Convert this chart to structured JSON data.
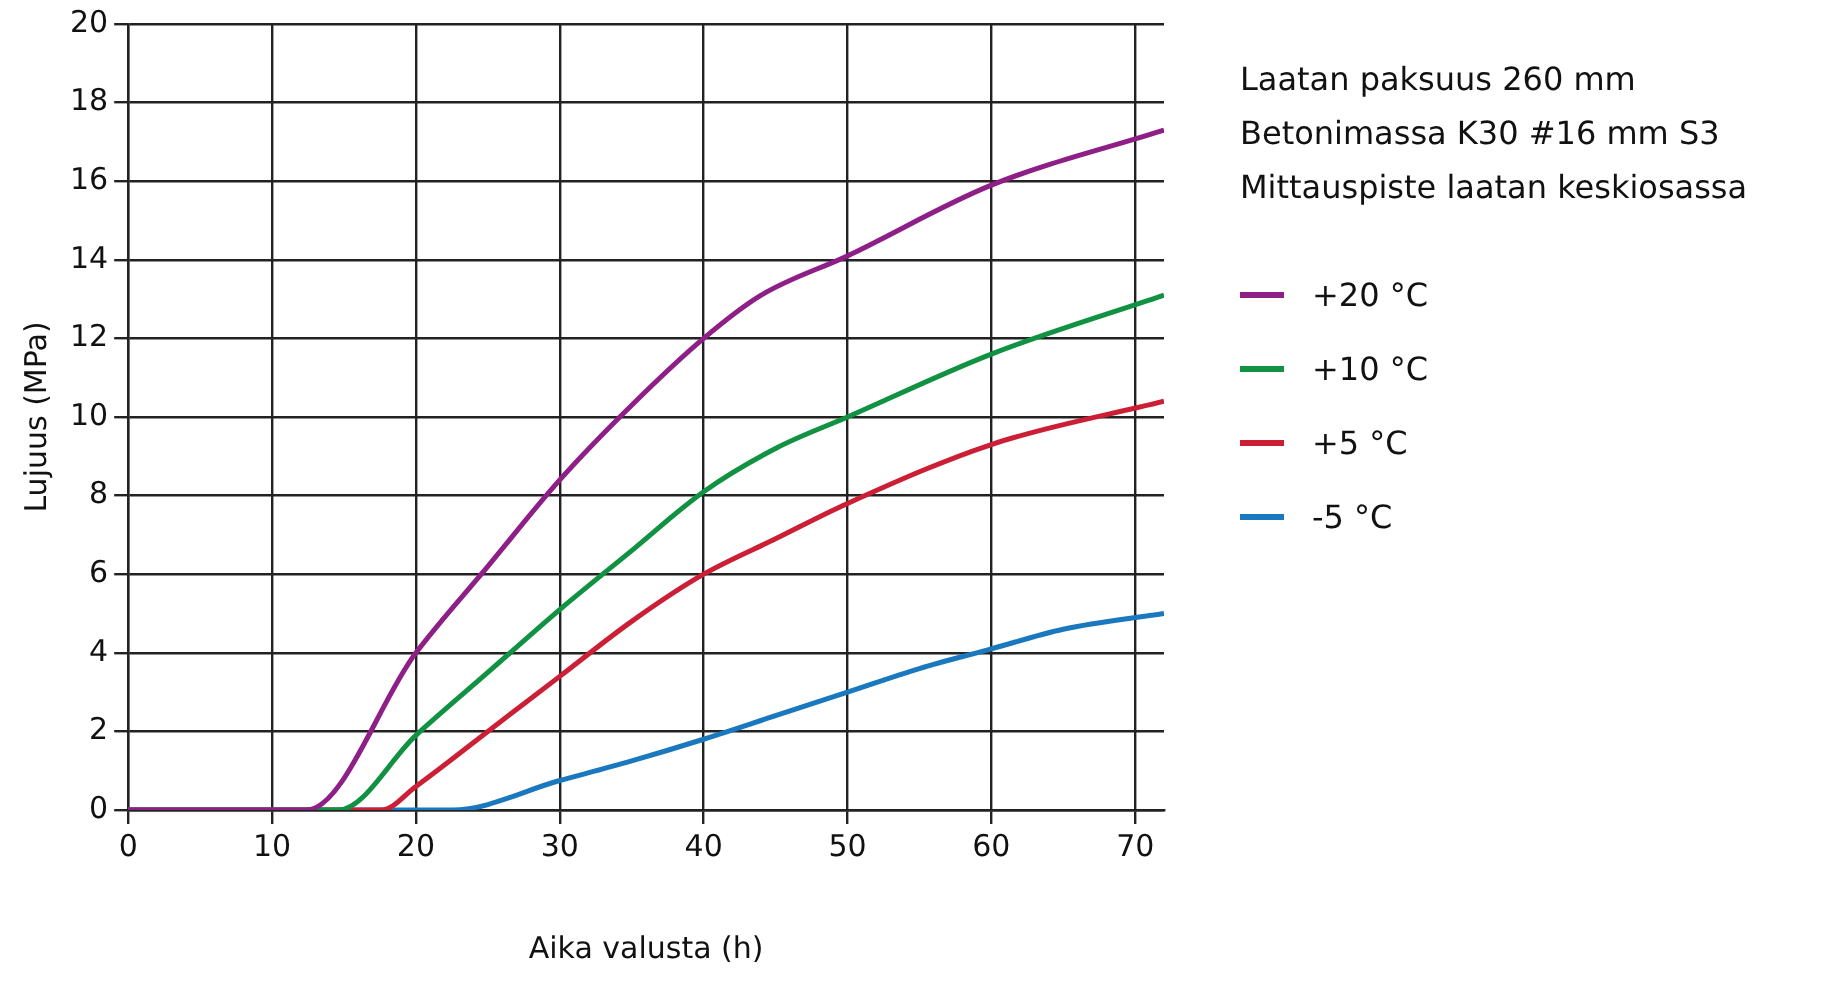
{
  "chart_data": {
    "type": "line",
    "xlabel": "Aika valusta (h)",
    "ylabel": "Lujuus (MPa)",
    "annotations": [
      "Laatan paksuus 260 mm",
      "Betonimassa K30 #16 mm S3",
      "Mittauspiste laatan keskiosassa"
    ],
    "xlim": [
      0,
      72
    ],
    "xticks": [
      0,
      10,
      20,
      30,
      40,
      50,
      60,
      70
    ],
    "ylim": [
      0,
      20
    ],
    "yticks": [
      0,
      2,
      4,
      6,
      8,
      10,
      12,
      14,
      16,
      18,
      20
    ],
    "grid": true,
    "legend": "right",
    "marker": "none",
    "line_style": "solid",
    "series": [
      {
        "name": "+20 °C",
        "color": "#8e1f87",
        "x": [
          0,
          12.4,
          20,
          25,
          30,
          35,
          40,
          44,
          50,
          60,
          72
        ],
        "values": [
          0,
          0,
          4.0,
          6.2,
          8.4,
          10.3,
          12.0,
          13.1,
          14.1,
          15.9,
          17.3
        ]
      },
      {
        "name": "+10 °C",
        "color": "#119243",
        "x": [
          0,
          14.6,
          20,
          25,
          30,
          35,
          40,
          45,
          50,
          60,
          72
        ],
        "values": [
          0,
          0,
          1.9,
          3.5,
          5.1,
          6.6,
          8.1,
          9.2,
          10.0,
          11.6,
          13.1
        ]
      },
      {
        "name": "+5 °C",
        "color": "#cc1f36",
        "x": [
          0,
          17.6,
          20,
          25,
          30,
          35,
          40,
          45,
          50,
          60,
          72
        ],
        "values": [
          0,
          0,
          0.6,
          2.0,
          3.4,
          4.8,
          6.0,
          6.9,
          7.8,
          9.3,
          10.4
        ]
      },
      {
        "name": "-5 °C",
        "color": "#1a78be",
        "x": [
          0,
          22.5,
          30,
          35,
          40,
          45,
          50,
          55,
          60,
          65,
          72
        ],
        "values": [
          0,
          0,
          0.75,
          1.25,
          1.8,
          2.4,
          3.0,
          3.6,
          4.1,
          4.6,
          5.0
        ]
      }
    ]
  }
}
